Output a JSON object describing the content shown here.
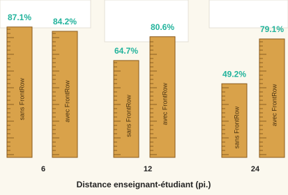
{
  "chart_data": {
    "type": "bar",
    "xlabel": "Distance enseignant-étudiant (pi.)",
    "categories": [
      "6",
      "12",
      "24"
    ],
    "series": [
      {
        "name": "sans FrontRow",
        "color": "#d9a24a",
        "values": [
          87.1,
          64.7,
          49.2
        ],
        "value_labels": [
          "87.1%",
          "64.7%",
          "49.2%"
        ]
      },
      {
        "name": "avec FrontRow",
        "color": "#d9a24a",
        "values": [
          84.2,
          80.6,
          79.1
        ],
        "value_labels": [
          "84.2%",
          "80.6%",
          "79.1%"
        ]
      }
    ]
  }
}
